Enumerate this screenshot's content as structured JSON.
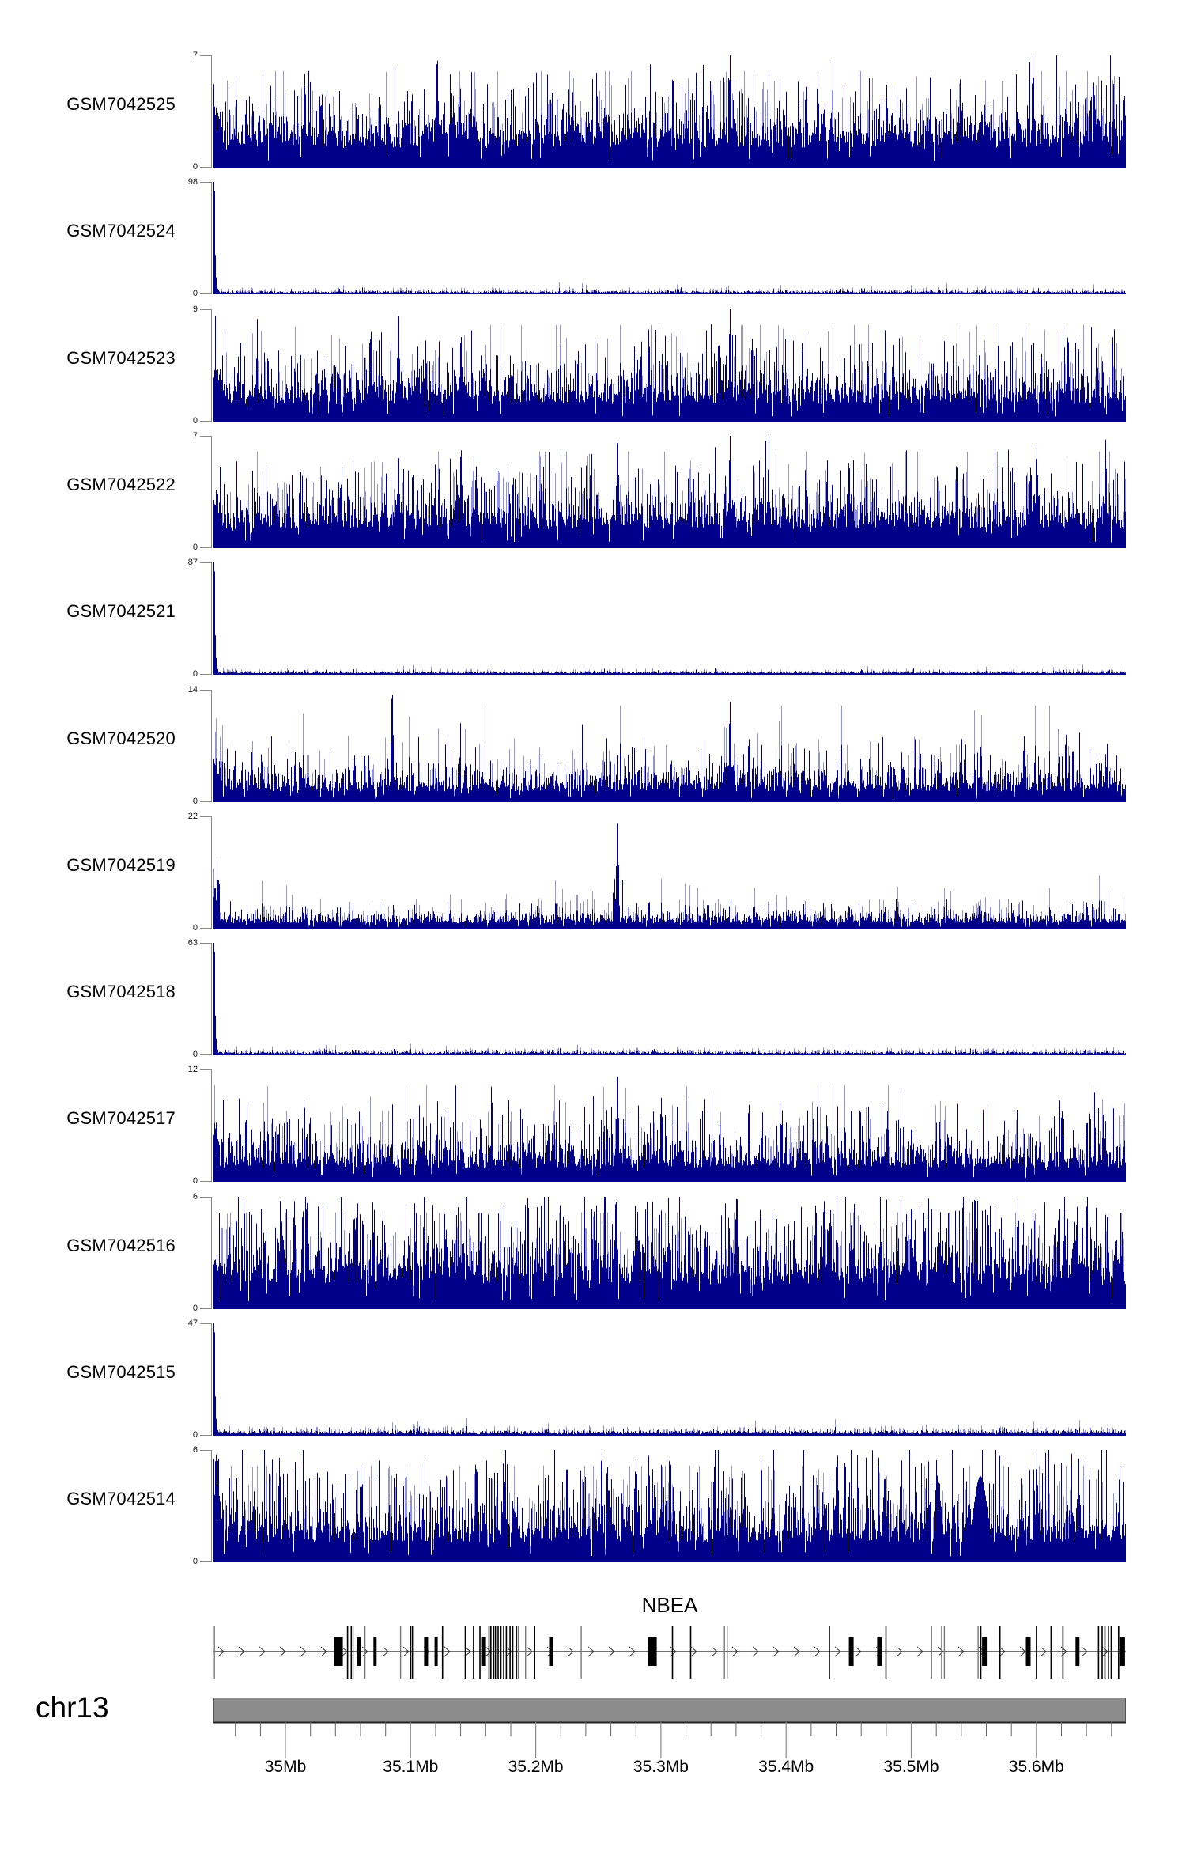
{
  "style": {
    "signal_color": "#00008b",
    "signal_light_color": "#9494d2",
    "axis_color": "#8a8a8a",
    "chromosome_bar_color": "#8c8c8c",
    "chromosome_bar_border_color": "#555555",
    "ruler_line_color": "#222222",
    "minor_tick_color": "#666666",
    "major_tick_color": "#8a8a8a",
    "text_color": "#000000"
  },
  "chart_data": {
    "type": "genome-browser-coverage-tracks",
    "region": {
      "chromosome": "chr13",
      "start_mb": 34.9425,
      "end_mb": 35.6715,
      "unit": "Mb"
    },
    "ruler": {
      "major_ticks": [
        {
          "mb": 35.0,
          "label": "35Mb"
        },
        {
          "mb": 35.1,
          "label": "35.1Mb"
        },
        {
          "mb": 35.2,
          "label": "35.2Mb"
        },
        {
          "mb": 35.3,
          "label": "35.3Mb"
        },
        {
          "mb": 35.4,
          "label": "35.4Mb"
        },
        {
          "mb": 35.5,
          "label": "35.5Mb"
        },
        {
          "mb": 35.6,
          "label": "35.6Mb"
        }
      ],
      "minor_tick_step_mb": 0.02,
      "first_minor_mb": 34.96,
      "last_minor_mb": 35.66
    },
    "gene_annotation": {
      "name": "NBEA",
      "strand": "right",
      "exons": [
        [
          0.001,
          2,
          "g"
        ],
        [
          0.137,
          11,
          "b"
        ],
        [
          0.147,
          1.5,
          "t"
        ],
        [
          0.151,
          1.5,
          "t"
        ],
        [
          0.153,
          1.5,
          "g"
        ],
        [
          0.159,
          5,
          "b"
        ],
        [
          0.166,
          1.5,
          "g"
        ],
        [
          0.177,
          4,
          "b"
        ],
        [
          0.205,
          1.5,
          "g"
        ],
        [
          0.216,
          1.5,
          "t"
        ],
        [
          0.218,
          1.5,
          "t"
        ],
        [
          0.233,
          5,
          "b"
        ],
        [
          0.244,
          4,
          "b"
        ],
        [
          0.251,
          1.5,
          "t"
        ],
        [
          0.276,
          1.5,
          "t"
        ],
        [
          0.285,
          1.5,
          "t"
        ],
        [
          0.292,
          1.5,
          "t"
        ],
        [
          0.296,
          6,
          "b"
        ],
        [
          0.302,
          1.5,
          "t"
        ],
        [
          0.304,
          1.5,
          "t"
        ],
        [
          0.307,
          1.5,
          "t"
        ],
        [
          0.309,
          1.5,
          "t"
        ],
        [
          0.312,
          1.5,
          "t"
        ],
        [
          0.315,
          1.5,
          "t"
        ],
        [
          0.318,
          1.5,
          "t"
        ],
        [
          0.321,
          1.5,
          "t"
        ],
        [
          0.325,
          1.5,
          "t"
        ],
        [
          0.328,
          1.5,
          "t"
        ],
        [
          0.332,
          1.5,
          "t"
        ],
        [
          0.334,
          1.5,
          "g"
        ],
        [
          0.342,
          1.5,
          "g"
        ],
        [
          0.352,
          1.5,
          "t"
        ],
        [
          0.37,
          5,
          "b"
        ],
        [
          0.403,
          1.5,
          "g"
        ],
        [
          0.481,
          11,
          "b"
        ],
        [
          0.503,
          1.5,
          "t"
        ],
        [
          0.523,
          1.5,
          "t"
        ],
        [
          0.56,
          1.5,
          "g"
        ],
        [
          0.563,
          1.5,
          "g"
        ],
        [
          0.675,
          1.5,
          "t"
        ],
        [
          0.699,
          6,
          "b"
        ],
        [
          0.73,
          6,
          "b"
        ],
        [
          0.737,
          1.5,
          "t"
        ],
        [
          0.787,
          1.5,
          "g"
        ],
        [
          0.798,
          1.5,
          "g"
        ],
        [
          0.801,
          1.5,
          "g"
        ],
        [
          0.838,
          1.5,
          "g"
        ],
        [
          0.841,
          1.5,
          "t"
        ],
        [
          0.845,
          6,
          "b"
        ],
        [
          0.862,
          1.5,
          "t"
        ],
        [
          0.893,
          6,
          "b"
        ],
        [
          0.902,
          1.5,
          "t"
        ],
        [
          0.918,
          1.5,
          "t"
        ],
        [
          0.931,
          1.5,
          "t"
        ],
        [
          0.947,
          5,
          "b"
        ],
        [
          0.97,
          1.5,
          "t"
        ],
        [
          0.974,
          1.5,
          "t"
        ],
        [
          0.977,
          1.5,
          "t"
        ],
        [
          0.981,
          1.5,
          "t"
        ],
        [
          0.984,
          1.5,
          "t"
        ],
        [
          0.992,
          1.5,
          "t"
        ],
        [
          0.996,
          7,
          "b"
        ]
      ]
    },
    "tracks": [
      {
        "label": "GSM7042525",
        "ymax": 7,
        "y_min": 0,
        "seed": 3,
        "left_spike": 4.2,
        "noise_base": 1.8,
        "noise_spread": 1.5,
        "tail_prob": 0.16,
        "light_bar_prob": 0.17,
        "peaks": [
          [
            35.015,
            5.9
          ],
          [
            35.121,
            7
          ],
          [
            35.355,
            7
          ],
          [
            35.425,
            5.8
          ],
          [
            35.48,
            5.2
          ],
          [
            35.597,
            7
          ]
        ]
      },
      {
        "label": "GSM7042524",
        "ymax": 98,
        "y_min": 0,
        "seed": 17,
        "left_spike": 98,
        "noise_base": 1.6,
        "noise_spread": 1.4,
        "tail_prob": 0.06,
        "light_bar_prob": 0.3,
        "peaks": [
          [
            35.25,
            3.2
          ]
        ]
      },
      {
        "label": "GSM7042523",
        "ymax": 9,
        "y_min": 0,
        "seed": 29,
        "left_spike": 5.0,
        "noise_base": 2.0,
        "noise_spread": 1.9,
        "tail_prob": 0.18,
        "light_bar_prob": 0.17,
        "peaks": [
          [
            35.068,
            7.4
          ],
          [
            35.09,
            9
          ],
          [
            35.14,
            7
          ],
          [
            35.29,
            7.4
          ],
          [
            35.355,
            9
          ],
          [
            35.625,
            7
          ]
        ]
      },
      {
        "label": "GSM7042522",
        "ymax": 7,
        "y_min": 0,
        "seed": 41,
        "left_spike": 3.9,
        "noise_base": 1.7,
        "noise_spread": 1.5,
        "tail_prob": 0.17,
        "light_bar_prob": 0.17,
        "peaks": [
          [
            35.09,
            6
          ],
          [
            35.14,
            6.3
          ],
          [
            35.265,
            7
          ],
          [
            35.355,
            7
          ],
          [
            35.45,
            5.5
          ],
          [
            35.6,
            6.5
          ],
          [
            35.655,
            6.8
          ]
        ]
      },
      {
        "label": "GSM7042521",
        "ymax": 87,
        "y_min": 0,
        "seed": 53,
        "left_spike": 87,
        "noise_base": 1.3,
        "noise_spread": 1.1,
        "tail_prob": 0.05,
        "light_bar_prob": 0.3,
        "peaks": [
          [
            35.46,
            4.2
          ]
        ]
      },
      {
        "label": "GSM7042520",
        "ymax": 14,
        "y_min": 0,
        "seed": 67,
        "left_spike": 6.0,
        "noise_base": 1.9,
        "noise_spread": 2.2,
        "tail_prob": 0.15,
        "light_bar_prob": 0.16,
        "peaks": [
          [
            35.085,
            14
          ],
          [
            35.355,
            12.5
          ],
          [
            35.37,
            8
          ],
          [
            35.59,
            8.2
          ],
          [
            35.655,
            6
          ]
        ]
      },
      {
        "label": "GSM7042519",
        "ymax": 22,
        "y_min": 0,
        "seed": 71,
        "left_spike": 10,
        "noise_base": 1.5,
        "noise_spread": 1.6,
        "tail_prob": 0.12,
        "light_bar_prob": 0.22,
        "peaks": [
          [
            35.265,
            22
          ],
          [
            35.29,
            5
          ],
          [
            35.45,
            4.6
          ],
          [
            35.64,
            5.2
          ]
        ]
      },
      {
        "label": "GSM7042518",
        "ymax": 63,
        "y_min": 0,
        "seed": 83,
        "left_spike": 63,
        "noise_base": 1.2,
        "noise_spread": 0.9,
        "tail_prob": 0.05,
        "light_bar_prob": 0.3,
        "peaks": []
      },
      {
        "label": "GSM7042517",
        "ymax": 12,
        "y_min": 0,
        "seed": 97,
        "left_spike": 6.5,
        "noise_base": 2.1,
        "noise_spread": 2.4,
        "tail_prob": 0.18,
        "light_bar_prob": 0.17,
        "peaks": [
          [
            35.21,
            5.6
          ],
          [
            35.265,
            12
          ],
          [
            35.3,
            9
          ],
          [
            35.5,
            6
          ],
          [
            35.62,
            5.6
          ]
        ]
      },
      {
        "label": "GSM7042516",
        "ymax": 6,
        "y_min": 0,
        "seed": 109,
        "left_spike": 3.2,
        "noise_base": 1.9,
        "noise_spread": 1.6,
        "tail_prob": 0.22,
        "light_bar_prob": 0.2,
        "peaks": [
          [
            35.36,
            5.9
          ],
          [
            35.43,
            5.9
          ],
          [
            35.5,
            5.7
          ],
          [
            35.585,
            5.9
          ],
          [
            35.64,
            5.5
          ]
        ]
      },
      {
        "label": "GSM7042515",
        "ymax": 47,
        "y_min": 0,
        "seed": 127,
        "left_spike": 47,
        "noise_base": 1.2,
        "noise_spread": 0.9,
        "tail_prob": 0.05,
        "light_bar_prob": 0.3,
        "peaks": []
      },
      {
        "label": "GSM7042514",
        "ymax": 6,
        "y_min": 0,
        "seed": 139,
        "left_spike": 6,
        "noise_base": 1.5,
        "noise_spread": 1.7,
        "tail_prob": 0.2,
        "light_bar_prob": 0.18,
        "peaks": [
          [
            34.995,
            5.6
          ],
          [
            35.06,
            5.2
          ],
          [
            35.29,
            5.7
          ],
          [
            35.44,
            5.5
          ],
          [
            35.52,
            5.5
          ],
          [
            35.555,
            4.6,
            9
          ],
          [
            35.6,
            5.9
          ]
        ]
      }
    ]
  }
}
